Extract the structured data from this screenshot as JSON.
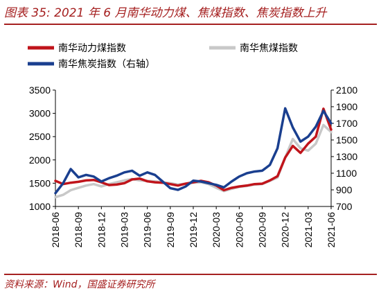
{
  "figure": {
    "title_prefix": "图表 35:",
    "title_text": "2021 年 6 月南华动力煤、焦煤指数、焦炭指数上升",
    "source": "资料来源：Wind，国盛证券研究所"
  },
  "colors": {
    "accent": "#a52020",
    "thermal_coal": "#c0141b",
    "coking_coal": "#c8c8c8",
    "coke": "#1a3f8f"
  },
  "chart_data": {
    "type": "line",
    "title": "2021 年 6 月南华动力煤、焦煤指数、焦炭指数上升",
    "x_tick_labels": [
      "2018-06",
      "2018-09",
      "2018-12",
      "2019-03",
      "2019-06",
      "2019-09",
      "2019-12",
      "2020-03",
      "2020-06",
      "2020-09",
      "2020-12",
      "2021-03",
      "2021-06"
    ],
    "x_range": [
      "2018-06",
      "2021-06"
    ],
    "y_left": {
      "range": [
        1000,
        3500
      ],
      "ticks": [
        1000,
        1500,
        2000,
        2500,
        3000,
        3500
      ]
    },
    "y_right": {
      "range": [
        700,
        2100
      ],
      "ticks": [
        700,
        900,
        1100,
        1300,
        1500,
        1700,
        1900,
        2100
      ]
    },
    "grid": false,
    "legend_position": "top",
    "series": [
      {
        "name": "南华动力煤指数",
        "axis": "left",
        "color": "#c0141b",
        "x": [
          "2018-06",
          "2018-07",
          "2018-08",
          "2018-09",
          "2018-10",
          "2018-11",
          "2018-12",
          "2019-01",
          "2019-02",
          "2019-03",
          "2019-04",
          "2019-05",
          "2019-06",
          "2019-07",
          "2019-08",
          "2019-09",
          "2019-10",
          "2019-11",
          "2019-12",
          "2020-01",
          "2020-02",
          "2020-03",
          "2020-04",
          "2020-05",
          "2020-06",
          "2020-07",
          "2020-08",
          "2020-09",
          "2020-10",
          "2020-11",
          "2020-12",
          "2021-01",
          "2021-02",
          "2021-03",
          "2021-04",
          "2021-05",
          "2021-06"
        ],
        "values": [
          1550,
          1480,
          1510,
          1530,
          1560,
          1570,
          1520,
          1460,
          1470,
          1500,
          1580,
          1600,
          1540,
          1520,
          1510,
          1480,
          1450,
          1490,
          1520,
          1550,
          1520,
          1450,
          1350,
          1400,
          1430,
          1450,
          1480,
          1490,
          1560,
          1650,
          2050,
          2300,
          2150,
          2350,
          2500,
          3100,
          2650
        ]
      },
      {
        "name": "南华焦煤指数",
        "axis": "left",
        "color": "#c8c8c8",
        "x": [
          "2018-06",
          "2018-07",
          "2018-08",
          "2018-09",
          "2018-10",
          "2018-11",
          "2018-12",
          "2019-01",
          "2019-02",
          "2019-03",
          "2019-04",
          "2019-05",
          "2019-06",
          "2019-07",
          "2019-08",
          "2019-09",
          "2019-10",
          "2019-11",
          "2019-12",
          "2020-01",
          "2020-02",
          "2020-03",
          "2020-04",
          "2020-05",
          "2020-06",
          "2020-07",
          "2020-08",
          "2020-09",
          "2020-10",
          "2020-11",
          "2020-12",
          "2021-01",
          "2021-02",
          "2021-03",
          "2021-04",
          "2021-05",
          "2021-06"
        ],
        "values": [
          1200,
          1250,
          1350,
          1400,
          1450,
          1480,
          1430,
          1480,
          1520,
          1560,
          1590,
          1560,
          1550,
          1540,
          1520,
          1500,
          1470,
          1490,
          1510,
          1520,
          1480,
          1400,
          1330,
          1380,
          1420,
          1440,
          1470,
          1480,
          1550,
          1620,
          2050,
          2450,
          2250,
          2200,
          2350,
          2750,
          2600
        ]
      },
      {
        "name": "南华焦炭指数（右轴）",
        "axis": "right",
        "color": "#1a3f8f",
        "x": [
          "2018-06",
          "2018-07",
          "2018-08",
          "2018-09",
          "2018-10",
          "2018-11",
          "2018-12",
          "2019-01",
          "2019-02",
          "2019-03",
          "2019-04",
          "2019-05",
          "2019-06",
          "2019-07",
          "2019-08",
          "2019-09",
          "2019-10",
          "2019-11",
          "2019-12",
          "2020-01",
          "2020-02",
          "2020-03",
          "2020-04",
          "2020-05",
          "2020-06",
          "2020-07",
          "2020-08",
          "2020-09",
          "2020-10",
          "2020-11",
          "2020-12",
          "2021-01",
          "2021-02",
          "2021-03",
          "2021-04",
          "2021-05",
          "2021-06"
        ],
        "values": [
          860,
          980,
          1150,
          1050,
          1080,
          1060,
          1000,
          1040,
          1070,
          1110,
          1130,
          1070,
          1110,
          1080,
          1000,
          920,
          900,
          940,
          1010,
          1000,
          980,
          960,
          930,
          1000,
          1060,
          1100,
          1120,
          1130,
          1200,
          1400,
          1880,
          1650,
          1480,
          1540,
          1660,
          1850,
          1700
        ]
      }
    ]
  }
}
